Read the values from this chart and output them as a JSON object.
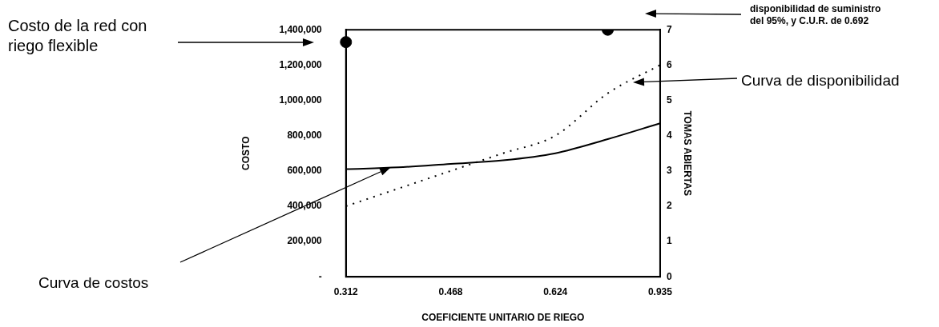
{
  "chart_data": {
    "type": "line",
    "xlabel": "COEFICIENTE UNITARIO DE RIEGO",
    "ylabel": "COSTO",
    "y2label": "TOMAS ABIERTAS",
    "categories": [
      "0.312",
      null,
      "0.468",
      null,
      "0.624",
      null,
      "0.935"
    ],
    "series": [
      {
        "color": "#000000",
        "line_style": "solid",
        "marker": "none",
        "values": [
          610000,
          620000,
          640000,
          660000,
          700000,
          780000,
          870000
        ]
      },
      {
        "axis": "y2",
        "color": "#000000",
        "line_style": "dotted",
        "marker": "none",
        "values": [
          2.0,
          2.5,
          3.0,
          3.5,
          4.0,
          5.2,
          6.0
        ]
      },
      {
        "type": "scatter",
        "color": "#000000",
        "marker": "circle",
        "values": [
          1330000,
          null,
          null,
          null,
          null,
          1400000,
          null
        ]
      }
    ],
    "ylim": [
      0,
      1400000
    ],
    "yticks": [
      {
        "value": 0,
        "label": "-"
      },
      {
        "value": 200000,
        "label": "200,000"
      },
      {
        "value": 400000,
        "label": "400,000"
      },
      {
        "value": 600000,
        "label": "600,000"
      },
      {
        "value": 800000,
        "label": "800,000"
      },
      {
        "value": 1000000,
        "label": "1,000,000"
      },
      {
        "value": 1200000,
        "label": "1,200,000"
      },
      {
        "value": 1400000,
        "label": "1,400,000"
      }
    ],
    "y2lim": [
      0,
      7
    ],
    "y2ticks": [
      0,
      1,
      2,
      3,
      4,
      5,
      6,
      7
    ],
    "grid": false,
    "legend": false,
    "annotations": [
      "Costo de la red con riego flexible",
      "Curva de costos",
      "Curva de disponibilidad",
      "disponibilidad de suministro del 95%, y C.U.R. de 0.692"
    ]
  }
}
